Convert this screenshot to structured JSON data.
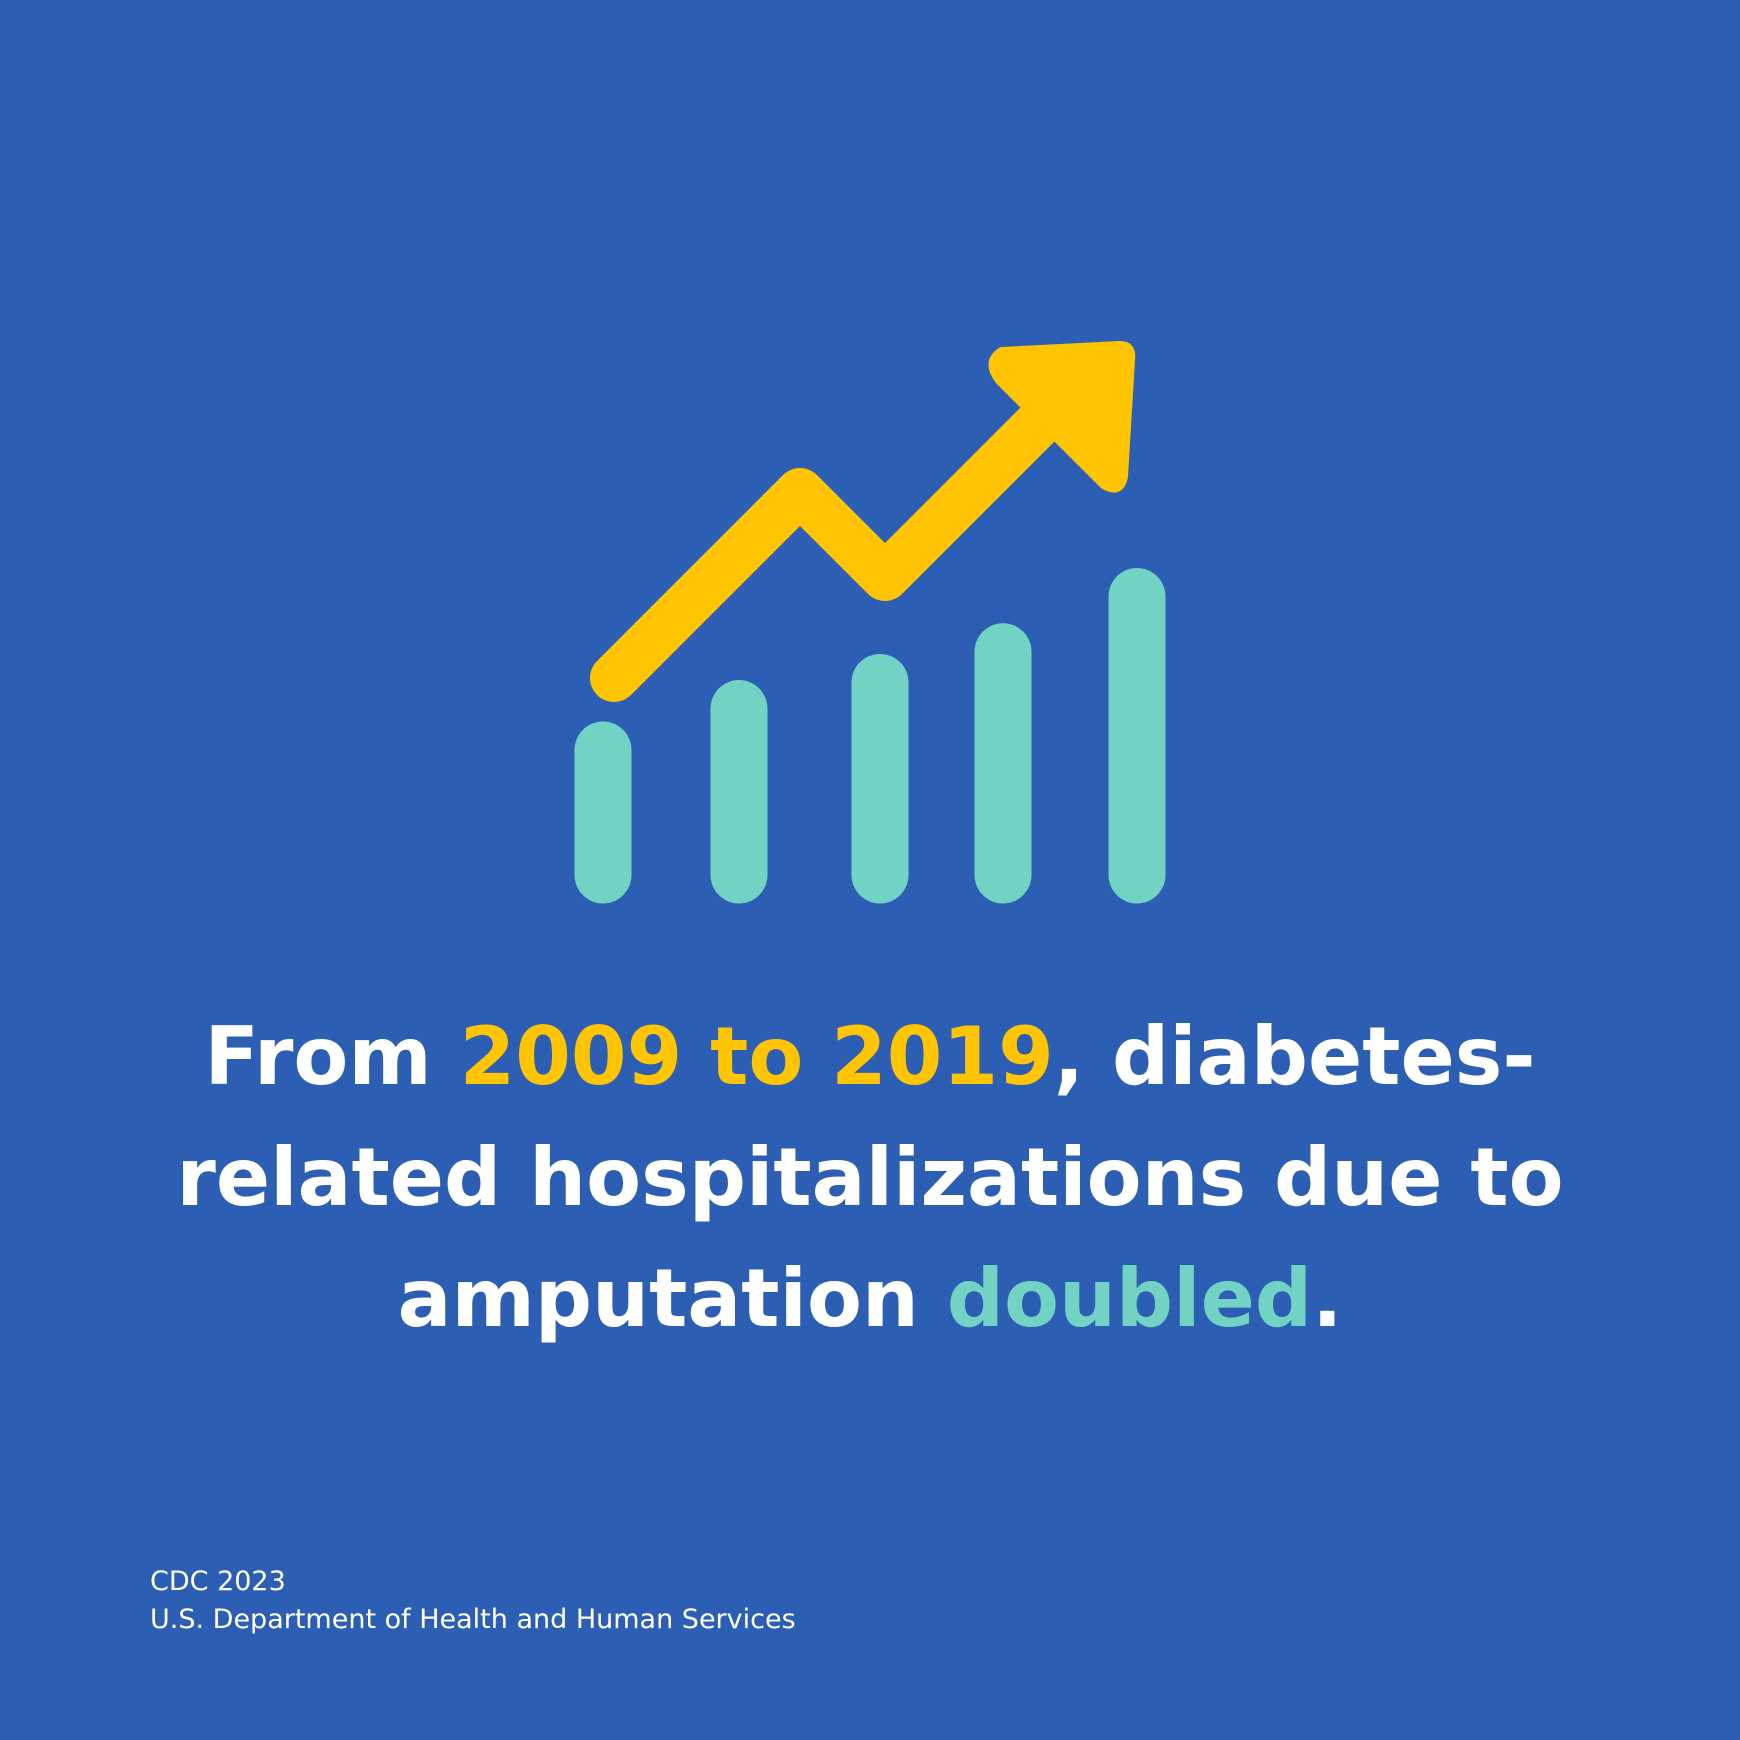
{
  "illustration": {
    "icon": "rising-bar-chart-with-arrow-icon",
    "bar_levels": [
      0.5,
      0.635,
      0.72,
      0.82,
      1.0
    ],
    "colors": {
      "background": "#2c5fb3",
      "arrow": "#ffc502",
      "bars": "#72d3c5"
    }
  },
  "headline": {
    "part1": "From ",
    "years": "2009 to 2019",
    "part2": ", diabetes-related hospitalizations due to amputation ",
    "emphasis": "doubled",
    "part3": ".",
    "colors": {
      "text": "#ffffff",
      "years": "#ffc502",
      "emphasis": "#72d3c5"
    }
  },
  "source": {
    "line1": "CDC 2023",
    "line2": "U.S. Department of Health and Human Services"
  }
}
